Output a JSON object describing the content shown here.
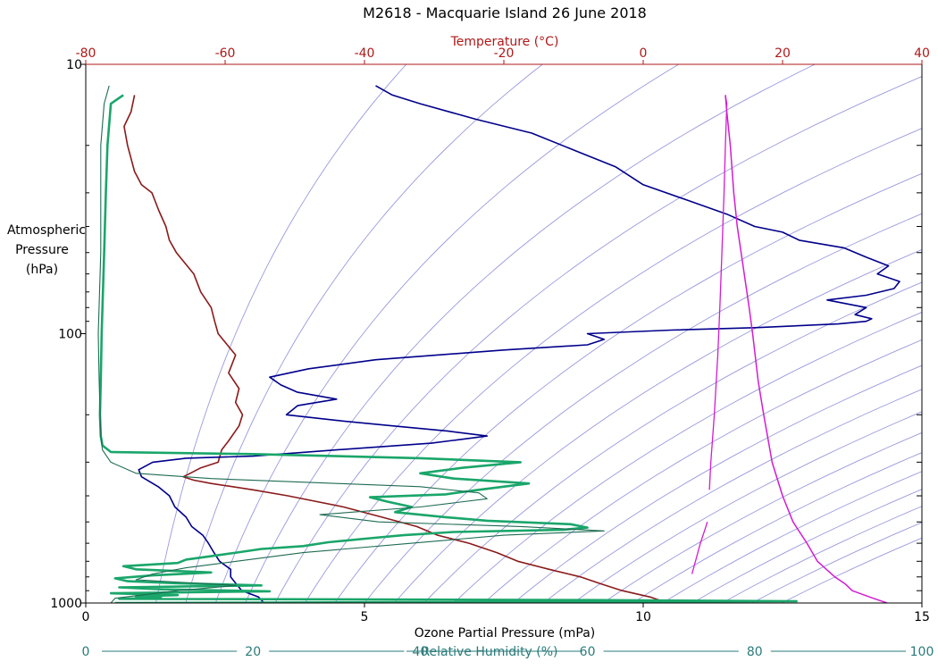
{
  "chart_data": {
    "type": "line",
    "title": "M2618 - Macquarie Island  26 June 2018",
    "pressure_axis": {
      "label_lines": [
        "Atmospheric",
        "Pressure",
        "(hPa)"
      ],
      "scale": "log",
      "range": [
        1000,
        10
      ],
      "tick_labels": [
        "10",
        "100",
        "1000"
      ],
      "minor_ticks": [
        20,
        30,
        40,
        50,
        60,
        70,
        80,
        90,
        200,
        300,
        400,
        500,
        600,
        700,
        800,
        900
      ]
    },
    "temperature_axis": {
      "label": "Temperature (°C)",
      "range": [
        -80,
        40
      ],
      "tick_labels": [
        "-80",
        "-60",
        "-40",
        "-20",
        "0",
        "20",
        "40"
      ]
    },
    "ozone_axis": {
      "label": "Ozone Partial Pressure (mPa)",
      "range": [
        0,
        15
      ],
      "tick_labels": [
        "0",
        "5",
        "10",
        "15"
      ]
    },
    "humidity_axis": {
      "label": "Relative Humidity (%)",
      "range": [
        0,
        100
      ],
      "tick_labels": [
        "0",
        "20",
        "40",
        "60",
        "80",
        "100"
      ]
    },
    "grid": true,
    "colors": {
      "temperature": "#8b1a1a",
      "ozone": "#00008b",
      "humidity": "#1aa66a",
      "humidity_thin": "#1e6b52",
      "magenta": "#d21cd2",
      "grid": "#9999dd",
      "axis_red": "#b01818",
      "axis_teal": "#2a7a7a"
    },
    "series": [
      {
        "key": "temperature",
        "axis": "temperature",
        "points": [
          [
            1000,
            3.5
          ],
          [
            950,
            1.0
          ],
          [
            900,
            -3.0
          ],
          [
            850,
            -6.0
          ],
          [
            800,
            -9.0
          ],
          [
            750,
            -13.5
          ],
          [
            700,
            -18.0
          ],
          [
            650,
            -21.0
          ],
          [
            600,
            -25.0
          ],
          [
            560,
            -29.5
          ],
          [
            520,
            -32.5
          ],
          [
            480,
            -37.5
          ],
          [
            440,
            -43.0
          ],
          [
            400,
            -51.0
          ],
          [
            380,
            -56.0
          ],
          [
            360,
            -62.0
          ],
          [
            350,
            -64.5
          ],
          [
            340,
            -66.0
          ],
          [
            330,
            -65.0
          ],
          [
            315,
            -63.5
          ],
          [
            300,
            -61.0
          ],
          [
            270,
            -60.5
          ],
          [
            250,
            -59.5
          ],
          [
            220,
            -58.0
          ],
          [
            200,
            -57.5
          ],
          [
            180,
            -58.5
          ],
          [
            160,
            -58.0
          ],
          [
            140,
            -59.5
          ],
          [
            120,
            -58.5
          ],
          [
            100,
            -61.0
          ],
          [
            90,
            -61.5
          ],
          [
            80,
            -62.0
          ],
          [
            70,
            -63.5
          ],
          [
            60,
            -64.5
          ],
          [
            50,
            -67.0
          ],
          [
            45,
            -68.0
          ],
          [
            40,
            -68.5
          ],
          [
            35,
            -69.5
          ],
          [
            30,
            -70.5
          ],
          [
            28,
            -72.0
          ],
          [
            25,
            -73.0
          ],
          [
            20,
            -74.0
          ],
          [
            17,
            -74.5
          ],
          [
            15,
            -73.5
          ],
          [
            13,
            -73.0
          ]
        ]
      },
      {
        "key": "ozone",
        "axis": "ozone",
        "points": [
          [
            1000,
            3.2
          ],
          [
            950,
            3.1
          ],
          [
            900,
            2.8
          ],
          [
            850,
            2.7
          ],
          [
            800,
            2.6
          ],
          [
            750,
            2.6
          ],
          [
            700,
            2.4
          ],
          [
            650,
            2.3
          ],
          [
            600,
            2.2
          ],
          [
            560,
            2.1
          ],
          [
            520,
            1.9
          ],
          [
            480,
            1.8
          ],
          [
            440,
            1.6
          ],
          [
            400,
            1.5
          ],
          [
            370,
            1.3
          ],
          [
            340,
            1.0
          ],
          [
            320,
            0.95
          ],
          [
            300,
            1.2
          ],
          [
            290,
            1.8
          ],
          [
            285,
            3.0
          ],
          [
            270,
            4.5
          ],
          [
            255,
            6.2
          ],
          [
            240,
            7.2
          ],
          [
            230,
            6.5
          ],
          [
            220,
            5.5
          ],
          [
            210,
            4.5
          ],
          [
            200,
            3.6
          ],
          [
            185,
            3.8
          ],
          [
            175,
            4.5
          ],
          [
            165,
            3.8
          ],
          [
            155,
            3.5
          ],
          [
            145,
            3.3
          ],
          [
            135,
            4.0
          ],
          [
            125,
            5.2
          ],
          [
            115,
            7.5
          ],
          [
            110,
            9.0
          ],
          [
            105,
            9.3
          ],
          [
            100,
            9.0
          ],
          [
            97,
            10.5
          ],
          [
            95,
            12.0
          ],
          [
            92,
            13.5
          ],
          [
            90,
            14.0
          ],
          [
            88,
            14.1
          ],
          [
            85,
            13.8
          ],
          [
            80,
            14.0
          ],
          [
            75,
            13.3
          ],
          [
            72,
            14.0
          ],
          [
            68,
            14.5
          ],
          [
            64,
            14.6
          ],
          [
            60,
            14.2
          ],
          [
            56,
            14.4
          ],
          [
            52,
            14.0
          ],
          [
            48,
            13.6
          ],
          [
            45,
            12.8
          ],
          [
            42,
            12.5
          ],
          [
            40,
            12.0
          ],
          [
            36,
            11.5
          ],
          [
            32,
            10.8
          ],
          [
            28,
            10.0
          ],
          [
            24,
            9.5
          ],
          [
            21,
            8.8
          ],
          [
            18,
            8.0
          ],
          [
            16,
            7.0
          ],
          [
            14,
            6.0
          ],
          [
            13,
            5.5
          ],
          [
            12,
            5.2
          ]
        ]
      },
      {
        "key": "humidity",
        "axis": "humidity",
        "points": [
          [
            1000,
            3.5
          ],
          [
            985,
            85.0
          ],
          [
            975,
            60.0
          ],
          [
            965,
            4.0
          ],
          [
            955,
            9.0
          ],
          [
            945,
            6.0
          ],
          [
            935,
            11.0
          ],
          [
            920,
            3.0
          ],
          [
            905,
            22.0
          ],
          [
            890,
            9.0
          ],
          [
            875,
            4.0
          ],
          [
            860,
            21.0
          ],
          [
            845,
            11.0
          ],
          [
            830,
            5.0
          ],
          [
            810,
            3.5
          ],
          [
            790,
            8.0
          ],
          [
            770,
            15.0
          ],
          [
            750,
            6.0
          ],
          [
            730,
            4.5
          ],
          [
            710,
            11.0
          ],
          [
            690,
            12.0
          ],
          [
            670,
            15.0
          ],
          [
            650,
            18.0
          ],
          [
            630,
            21.0
          ],
          [
            615,
            26.0
          ],
          [
            595,
            29.0
          ],
          [
            575,
            34.0
          ],
          [
            560,
            38.0
          ],
          [
            545,
            44.0
          ],
          [
            535,
            57.0
          ],
          [
            525,
            60.0
          ],
          [
            510,
            58.0
          ],
          [
            495,
            48.0
          ],
          [
            480,
            43.0
          ],
          [
            460,
            37.0
          ],
          [
            440,
            39.0
          ],
          [
            420,
            36.0
          ],
          [
            405,
            34.0
          ],
          [
            395,
            43.0
          ],
          [
            380,
            47.0
          ],
          [
            360,
            53.0
          ],
          [
            345,
            44.0
          ],
          [
            330,
            40.0
          ],
          [
            315,
            45.0
          ],
          [
            300,
            52.0
          ],
          [
            290,
            40.0
          ],
          [
            280,
            20.0
          ],
          [
            275,
            3.0
          ],
          [
            260,
            2.0
          ],
          [
            240,
            1.8
          ],
          [
            200,
            1.7
          ],
          [
            150,
            1.8
          ],
          [
            100,
            1.9
          ],
          [
            50,
            2.2
          ],
          [
            30,
            2.4
          ],
          [
            20,
            2.6
          ],
          [
            14,
            3.0
          ],
          [
            13,
            4.5
          ]
        ]
      },
      {
        "key": "humidity_thin",
        "axis": "humidity",
        "points": [
          [
            1000,
            3.0
          ],
          [
            960,
            3.5
          ],
          [
            900,
            11.0
          ],
          [
            860,
            18.0
          ],
          [
            820,
            6.0
          ],
          [
            780,
            8.0
          ],
          [
            740,
            12.0
          ],
          [
            700,
            18.0
          ],
          [
            650,
            26.0
          ],
          [
            600,
            39.0
          ],
          [
            560,
            50.0
          ],
          [
            540,
            62.0
          ],
          [
            520,
            52.0
          ],
          [
            500,
            35.0
          ],
          [
            470,
            28.0
          ],
          [
            440,
            40.0
          ],
          [
            410,
            48.0
          ],
          [
            390,
            47.0
          ],
          [
            370,
            40.0
          ],
          [
            360,
            30.0
          ],
          [
            345,
            15.0
          ],
          [
            330,
            6.0
          ],
          [
            300,
            3.0
          ],
          [
            285,
            2.5
          ],
          [
            270,
            2.0
          ],
          [
            240,
            1.8
          ],
          [
            150,
            1.6
          ],
          [
            100,
            1.5
          ],
          [
            50,
            1.8
          ],
          [
            20,
            1.8
          ],
          [
            14,
            2.2
          ],
          [
            12,
            2.8
          ]
        ]
      },
      {
        "key": "magenta",
        "axis": "temperature",
        "points": [
          [
            1000,
            35.0
          ],
          [
            960,
            33.0
          ],
          [
            900,
            30.0
          ],
          [
            850,
            29.0
          ],
          [
            800,
            27.5
          ],
          [
            700,
            25.0
          ],
          [
            600,
            23.5
          ],
          [
            500,
            21.5
          ],
          [
            400,
            20.0
          ],
          [
            300,
            18.5
          ],
          [
            200,
            17.3
          ],
          [
            150,
            16.5
          ],
          [
            100,
            15.7
          ],
          [
            80,
            15.2
          ],
          [
            60,
            14.5
          ],
          [
            40,
            13.5
          ],
          [
            30,
            13.0
          ],
          [
            20,
            12.5
          ],
          [
            15,
            12.0
          ],
          [
            13,
            11.8
          ]
        ]
      },
      {
        "key": "magenta_lower",
        "axis": "temperature",
        "points": [
          [
            780,
            7.0
          ],
          [
            700,
            7.5
          ],
          [
            600,
            8.2
          ],
          [
            520,
            9.0
          ],
          [
            500,
            9.2
          ]
        ]
      },
      {
        "key": "magenta_upper",
        "axis": "temperature",
        "points": [
          [
            380,
            9.5
          ],
          [
            300,
            9.7
          ],
          [
            200,
            10.2
          ],
          [
            120,
            10.7
          ],
          [
            80,
            11.0
          ],
          [
            50,
            11.3
          ],
          [
            30,
            11.6
          ],
          [
            20,
            11.8
          ],
          [
            14,
            12.0
          ],
          [
            13,
            11.8
          ]
        ]
      }
    ]
  }
}
